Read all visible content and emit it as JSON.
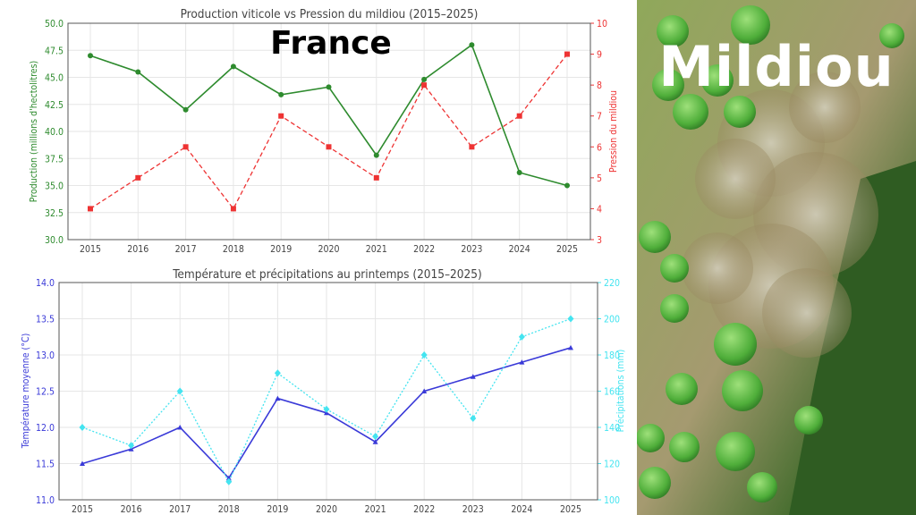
{
  "overlay": {
    "country": "France",
    "photo_caption": "Mildiou"
  },
  "photo": {
    "icon": "grape-cluster-mildew-photo"
  },
  "chart_data": [
    {
      "type": "line",
      "title": "Production viticole vs Pression du mildiou (2015–2025)",
      "x": [
        "2015",
        "2016",
        "2017",
        "2018",
        "2019",
        "2020",
        "2021",
        "2022",
        "2023",
        "2024",
        "2025"
      ],
      "ylabel": "Production (millions d'hectolitres)",
      "y2label": "Pression du mildiou",
      "ylim": [
        30,
        50
      ],
      "y2lim": [
        3,
        10
      ],
      "yticks": [
        "30.0",
        "32.5",
        "35.0",
        "37.5",
        "40.0",
        "42.5",
        "45.0",
        "47.5",
        "50.0"
      ],
      "y2ticks": [
        "3",
        "4",
        "5",
        "6",
        "7",
        "8",
        "9",
        "10"
      ],
      "grid": true,
      "series": [
        {
          "name": "Production",
          "axis": "left",
          "color": "#2e8b2e",
          "style": "solid",
          "marker": "circle",
          "values": [
            47.0,
            45.5,
            42.0,
            46.0,
            43.4,
            44.1,
            37.8,
            44.8,
            48.0,
            36.2,
            35.0
          ]
        },
        {
          "name": "Pression du mildiou",
          "axis": "right",
          "color": "#ee3333",
          "style": "dashed",
          "marker": "square",
          "values": [
            4,
            5,
            6,
            4,
            7,
            6,
            5,
            8,
            6,
            7,
            9
          ]
        }
      ]
    },
    {
      "type": "line",
      "title": "Température et précipitations au printemps (2015–2025)",
      "x": [
        "2015",
        "2016",
        "2017",
        "2018",
        "2019",
        "2020",
        "2021",
        "2022",
        "2023",
        "2024",
        "2025"
      ],
      "ylabel": "Température moyenne (°C)",
      "y2label": "Précipitations (mm)",
      "ylim": [
        11,
        14
      ],
      "y2lim": [
        100,
        220
      ],
      "yticks": [
        "11.0",
        "11.5",
        "12.0",
        "12.5",
        "13.0",
        "13.5",
        "14.0"
      ],
      "y2ticks": [
        "100",
        "120",
        "140",
        "160",
        "180",
        "200",
        "220"
      ],
      "grid": true,
      "series": [
        {
          "name": "Température moyenne",
          "axis": "left",
          "color": "#3a3ad8",
          "style": "solid",
          "marker": "triangle",
          "values": [
            11.5,
            11.7,
            12.0,
            11.3,
            12.4,
            12.2,
            11.8,
            12.5,
            12.7,
            12.9,
            13.1
          ]
        },
        {
          "name": "Précipitations",
          "axis": "right",
          "color": "#44e4f0",
          "style": "dotted",
          "marker": "diamond",
          "values": [
            140,
            130,
            160,
            110,
            170,
            150,
            135,
            180,
            145,
            190,
            200
          ]
        }
      ]
    }
  ]
}
